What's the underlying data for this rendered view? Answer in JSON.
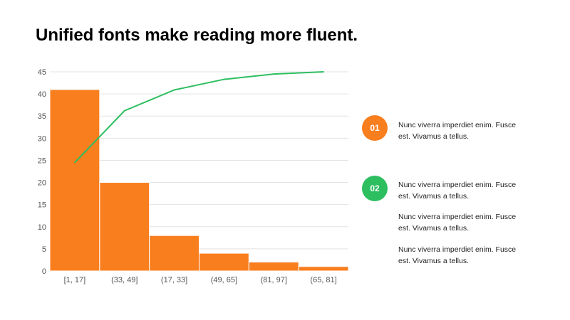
{
  "title": "Unified fonts make reading more fluent.",
  "chart_data": {
    "type": "bar",
    "categories": [
      "[1, 17]",
      "(33, 49]",
      "(17, 33]",
      "(49, 65]",
      "(81, 97]",
      "(65, 81]"
    ],
    "values": [
      41,
      20,
      8,
      4,
      2,
      1
    ],
    "line": [
      24.5,
      36.2,
      40.9,
      43.3,
      44.5,
      45.0
    ],
    "ylim": [
      0,
      45
    ],
    "yticks": [
      0,
      5,
      10,
      15,
      20,
      25,
      30,
      35,
      40,
      45
    ],
    "grid": true,
    "bar_color": "#F97E1E",
    "line_color": "#2DBE60"
  },
  "points": [
    {
      "badge": "01",
      "color": "#F97E1E",
      "text": "Nunc viverra imperdiet enim. Fusce est. Vivamus a tellus."
    },
    {
      "badge": "02",
      "color": "#2DBE60",
      "text": "Nunc viverra imperdiet enim. Fusce est. Vivamus a tellus."
    }
  ],
  "notes": [
    "Nunc viverra imperdiet enim. Fusce est. Vivamus a tellus.",
    "Nunc viverra imperdiet enim. Fusce est. Vivamus a tellus."
  ]
}
